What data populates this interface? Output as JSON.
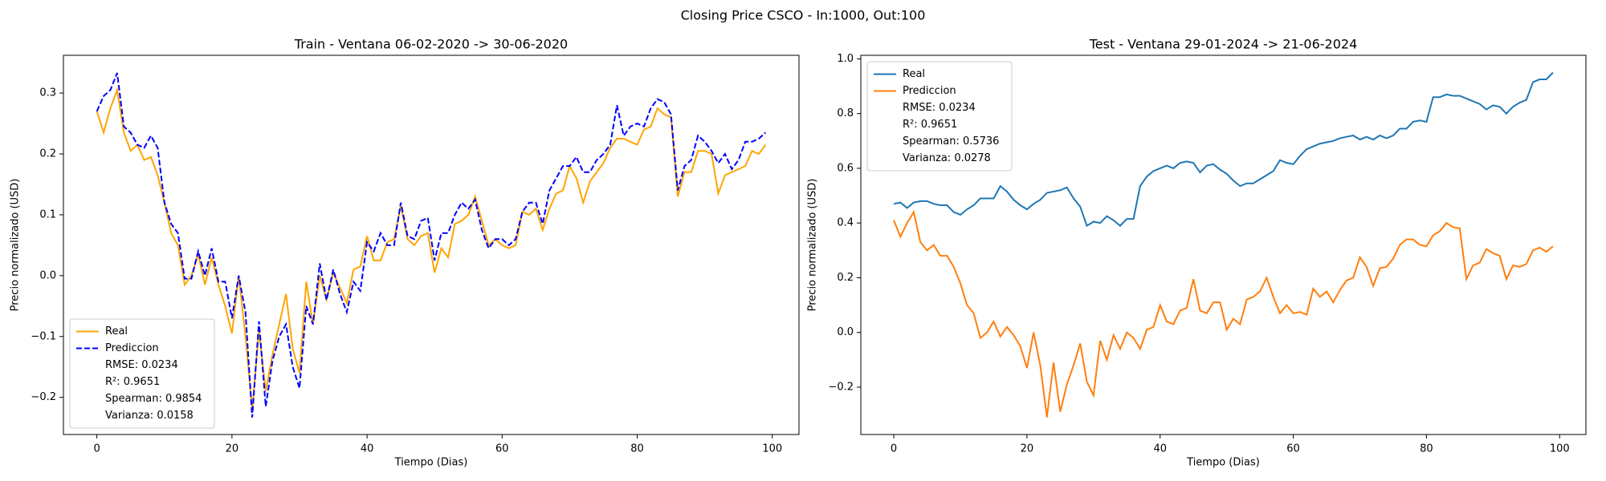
{
  "title": "Closing Price CSCO - In:1000, Out:100",
  "chart_data": [
    {
      "type": "line",
      "title": "Train - Ventana 06-02-2020 -> 30-06-2020",
      "xlabel": "Tiempo (Dias)",
      "ylabel": "Precio normalizado (USD)",
      "x": [
        0,
        1,
        2,
        3,
        4,
        5,
        6,
        7,
        8,
        9,
        10,
        11,
        12,
        13,
        14,
        15,
        16,
        17,
        18,
        19,
        20,
        21,
        22,
        23,
        24,
        25,
        26,
        27,
        28,
        29,
        30,
        31,
        32,
        33,
        34,
        35,
        36,
        37,
        38,
        39,
        40,
        41,
        42,
        43,
        44,
        45,
        46,
        47,
        48,
        49,
        50,
        51,
        52,
        53,
        54,
        55,
        56,
        57,
        58,
        59,
        60,
        61,
        62,
        63,
        64,
        65,
        66,
        67,
        68,
        69,
        70,
        71,
        72,
        73,
        74,
        75,
        76,
        77,
        78,
        79,
        80,
        81,
        82,
        83,
        84,
        85,
        86,
        87,
        88,
        89,
        90,
        91,
        92,
        93,
        94,
        95,
        96,
        97,
        98,
        99
      ],
      "xlim": [
        -4.95,
        103.95
      ],
      "xticks": [
        0,
        20,
        40,
        60,
        80,
        100
      ],
      "ylim": [
        -0.261,
        0.362
      ],
      "yticks": [
        {
          "value": -0.2,
          "label": "−0.2"
        },
        {
          "value": -0.1,
          "label": "−0.1"
        },
        {
          "value": 0,
          "label": "0.0"
        },
        0.1,
        0.2,
        0.3
      ],
      "legend": "lower left",
      "legend_notes": [
        "RMSE: 0.0234",
        "R²: 0.9651",
        "Spearman: 0.9854",
        "Varianza: 0.0158"
      ],
      "series": [
        {
          "name": "Real",
          "color": "#ffa500",
          "linestyle": "solid",
          "values": [
            0.27,
            0.235,
            0.275,
            0.305,
            0.235,
            0.205,
            0.215,
            0.19,
            0.195,
            0.165,
            0.12,
            0.07,
            0.05,
            -0.015,
            0.0,
            0.035,
            -0.015,
            0.03,
            -0.015,
            -0.05,
            -0.095,
            0.0,
            -0.1,
            -0.22,
            -0.09,
            -0.19,
            -0.13,
            -0.08,
            -0.03,
            -0.12,
            -0.16,
            -0.01,
            -0.08,
            0.0,
            -0.04,
            0.005,
            -0.02,
            -0.045,
            0.01,
            0.015,
            0.065,
            0.025,
            0.025,
            0.055,
            0.06,
            0.115,
            0.06,
            0.05,
            0.065,
            0.07,
            0.005,
            0.045,
            0.03,
            0.085,
            0.09,
            0.1,
            0.13,
            0.09,
            0.05,
            0.06,
            0.05,
            0.045,
            0.05,
            0.105,
            0.1,
            0.11,
            0.075,
            0.11,
            0.135,
            0.14,
            0.18,
            0.16,
            0.12,
            0.155,
            0.17,
            0.185,
            0.21,
            0.225,
            0.225,
            0.22,
            0.215,
            0.24,
            0.245,
            0.275,
            0.265,
            0.26,
            0.13,
            0.17,
            0.17,
            0.205,
            0.205,
            0.2,
            0.135,
            0.165,
            0.17,
            0.175,
            0.18,
            0.205,
            0.2,
            0.215
          ]
        },
        {
          "name": "Prediccion",
          "color": "#0000ff",
          "linestyle": "dashed",
          "values": [
            0.27,
            0.295,
            0.305,
            0.333,
            0.245,
            0.235,
            0.215,
            0.21,
            0.23,
            0.21,
            0.12,
            0.085,
            0.07,
            -0.005,
            -0.005,
            0.04,
            0.0,
            0.045,
            -0.01,
            -0.01,
            -0.07,
            0.0,
            -0.06,
            -0.233,
            -0.075,
            -0.215,
            -0.14,
            -0.1,
            -0.08,
            -0.15,
            -0.185,
            -0.05,
            -0.08,
            0.02,
            -0.04,
            0.01,
            -0.03,
            -0.06,
            -0.01,
            -0.025,
            0.055,
            0.04,
            0.07,
            0.05,
            0.05,
            0.12,
            0.065,
            0.06,
            0.09,
            0.095,
            0.025,
            0.07,
            0.07,
            0.1,
            0.12,
            0.11,
            0.125,
            0.075,
            0.045,
            0.06,
            0.06,
            0.05,
            0.06,
            0.105,
            0.12,
            0.12,
            0.085,
            0.14,
            0.16,
            0.18,
            0.18,
            0.195,
            0.17,
            0.17,
            0.19,
            0.2,
            0.215,
            0.28,
            0.23,
            0.245,
            0.25,
            0.245,
            0.275,
            0.29,
            0.285,
            0.265,
            0.14,
            0.18,
            0.19,
            0.23,
            0.22,
            0.205,
            0.185,
            0.2,
            0.175,
            0.19,
            0.22,
            0.22,
            0.225,
            0.235
          ]
        }
      ]
    },
    {
      "type": "line",
      "title": "Test - Ventana 29-01-2024 -> 21-06-2024",
      "xlabel": "Tiempo (Dias)",
      "ylabel": "Precio normalizado (USD)",
      "x": [
        0,
        1,
        2,
        3,
        4,
        5,
        6,
        7,
        8,
        9,
        10,
        11,
        12,
        13,
        14,
        15,
        16,
        17,
        18,
        19,
        20,
        21,
        22,
        23,
        24,
        25,
        26,
        27,
        28,
        29,
        30,
        31,
        32,
        33,
        34,
        35,
        36,
        37,
        38,
        39,
        40,
        41,
        42,
        43,
        44,
        45,
        46,
        47,
        48,
        49,
        50,
        51,
        52,
        53,
        54,
        55,
        56,
        57,
        58,
        59,
        60,
        61,
        62,
        63,
        64,
        65,
        66,
        67,
        68,
        69,
        70,
        71,
        72,
        73,
        74,
        75,
        76,
        77,
        78,
        79,
        80,
        81,
        82,
        83,
        84,
        85,
        86,
        87,
        88,
        89,
        90,
        91,
        92,
        93,
        94,
        95,
        96,
        97,
        98,
        99
      ],
      "xlim": [
        -4.95,
        103.95
      ],
      "xticks": [
        0,
        20,
        40,
        60,
        80,
        100
      ],
      "ylim": [
        -0.373,
        1.013
      ],
      "yticks": [
        {
          "value": -0.2,
          "label": "−0.2"
        },
        {
          "value": 0,
          "label": "0.0"
        },
        0.2,
        0.4,
        0.6,
        0.8,
        {
          "value": 1,
          "label": "1.0"
        }
      ],
      "legend": "upper left",
      "legend_notes": [
        "RMSE: 0.0234",
        "R²: 0.9651",
        "Spearman: 0.5736",
        "Varianza: 0.0278"
      ],
      "series": [
        {
          "name": "Real",
          "color": "#1f77b4",
          "linestyle": "solid",
          "values": [
            0.47,
            0.475,
            0.455,
            0.475,
            0.48,
            0.48,
            0.47,
            0.465,
            0.465,
            0.44,
            0.43,
            0.45,
            0.465,
            0.49,
            0.49,
            0.49,
            0.535,
            0.515,
            0.485,
            0.465,
            0.45,
            0.47,
            0.485,
            0.51,
            0.515,
            0.52,
            0.53,
            0.49,
            0.46,
            0.39,
            0.405,
            0.4,
            0.425,
            0.41,
            0.39,
            0.415,
            0.415,
            0.535,
            0.57,
            0.59,
            0.6,
            0.61,
            0.6,
            0.62,
            0.625,
            0.62,
            0.585,
            0.61,
            0.615,
            0.595,
            0.58,
            0.555,
            0.535,
            0.545,
            0.545,
            0.56,
            0.575,
            0.59,
            0.63,
            0.62,
            0.615,
            0.645,
            0.67,
            0.68,
            0.69,
            0.695,
            0.7,
            0.71,
            0.715,
            0.72,
            0.705,
            0.715,
            0.705,
            0.72,
            0.71,
            0.72,
            0.745,
            0.745,
            0.77,
            0.775,
            0.77,
            0.86,
            0.86,
            0.87,
            0.865,
            0.865,
            0.855,
            0.845,
            0.835,
            0.815,
            0.83,
            0.825,
            0.8,
            0.825,
            0.84,
            0.85,
            0.915,
            0.925,
            0.925,
            0.95
          ]
        },
        {
          "name": "Prediccion",
          "color": "#ff7f0e",
          "linestyle": "solid",
          "values": [
            0.41,
            0.35,
            0.4,
            0.44,
            0.33,
            0.3,
            0.32,
            0.28,
            0.28,
            0.24,
            0.18,
            0.1,
            0.07,
            -0.02,
            0.0,
            0.04,
            -0.015,
            0.02,
            -0.01,
            -0.05,
            -0.13,
            0.0,
            -0.12,
            -0.31,
            -0.11,
            -0.29,
            -0.19,
            -0.12,
            -0.04,
            -0.18,
            -0.23,
            -0.03,
            -0.1,
            -0.01,
            -0.06,
            0.0,
            -0.02,
            -0.06,
            0.01,
            0.02,
            0.1,
            0.04,
            0.03,
            0.08,
            0.09,
            0.195,
            0.08,
            0.07,
            0.11,
            0.11,
            0.01,
            0.05,
            0.03,
            0.12,
            0.13,
            0.15,
            0.2,
            0.13,
            0.07,
            0.1,
            0.07,
            0.075,
            0.065,
            0.16,
            0.13,
            0.15,
            0.11,
            0.155,
            0.19,
            0.2,
            0.275,
            0.24,
            0.17,
            0.235,
            0.24,
            0.27,
            0.32,
            0.34,
            0.34,
            0.32,
            0.315,
            0.355,
            0.37,
            0.4,
            0.385,
            0.38,
            0.195,
            0.245,
            0.255,
            0.305,
            0.29,
            0.28,
            0.195,
            0.245,
            0.24,
            0.25,
            0.3,
            0.31,
            0.295,
            0.315
          ]
        }
      ]
    }
  ]
}
